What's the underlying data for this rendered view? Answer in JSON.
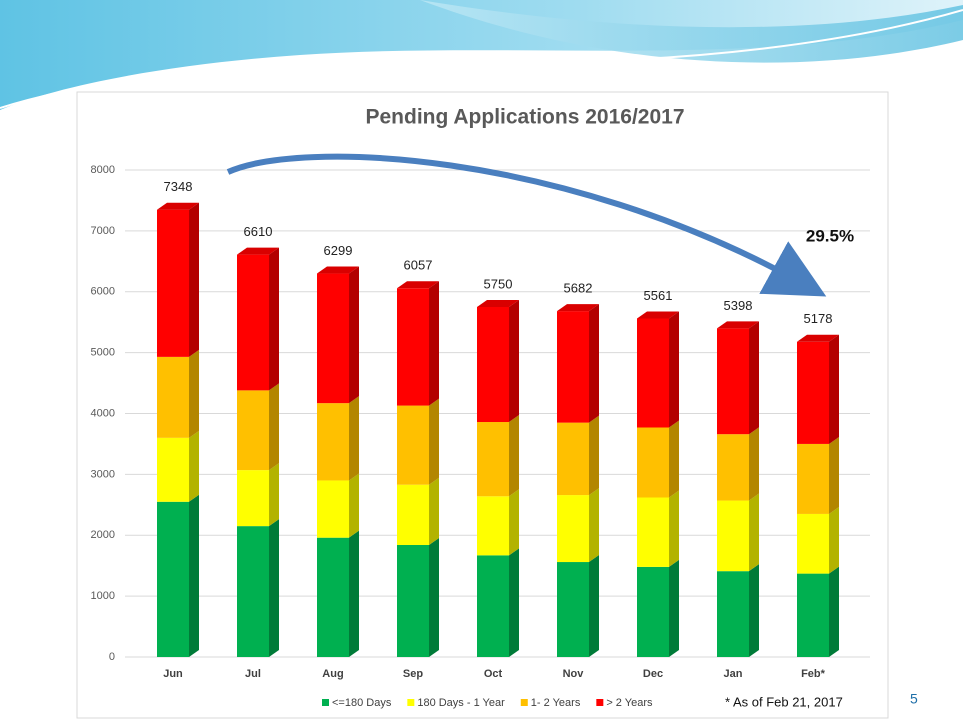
{
  "chart_data": {
    "type": "stacked_bar_3d",
    "title": "Pending Applications 2016/2017",
    "categories": [
      "Jun",
      "Jul",
      "Aug",
      "Sep",
      "Oct",
      "Nov",
      "Dec",
      "Jan",
      "Feb*"
    ],
    "series": [
      {
        "name": "<=180 Days",
        "color": "#00b050",
        "values": [
          2550,
          2150,
          1960,
          1840,
          1670,
          1560,
          1480,
          1410,
          1370
        ]
      },
      {
        "name": "180 Days - 1 Year",
        "color": "#ffff00",
        "values": [
          1050,
          920,
          940,
          990,
          970,
          1100,
          1140,
          1160,
          980
        ]
      },
      {
        "name": "1- 2 Years",
        "color": "#ffc000",
        "values": [
          1330,
          1310,
          1270,
          1300,
          1220,
          1190,
          1150,
          1090,
          1150
        ]
      },
      {
        "name": "> 2 Years",
        "color": "#ff0000",
        "values": [
          2418,
          2230,
          2129,
          1927,
          1890,
          1832,
          1791,
          1738,
          1678
        ]
      }
    ],
    "totals": [
      7348,
      6610,
      6299,
      6057,
      5750,
      5682,
      5561,
      5398,
      5178
    ],
    "ylim": [
      0,
      8000
    ],
    "yticks": [
      0,
      1000,
      2000,
      3000,
      4000,
      5000,
      6000,
      7000,
      8000
    ],
    "grid": true,
    "annotation": "29.5%",
    "footnote": "* As of Feb 21, 2017",
    "page_number": "5"
  }
}
